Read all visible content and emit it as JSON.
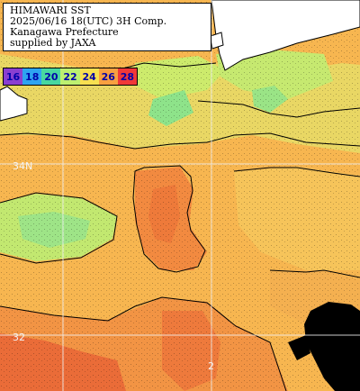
{
  "title": {
    "lines": [
      "HIMAWARI SST",
      "2025/06/16 18(UTC) 3H Comp.",
      "Kanagawa Prefecture",
      "supplied by JAXA"
    ]
  },
  "legend": {
    "items": [
      {
        "label": "16",
        "color": "#8a3fd0"
      },
      {
        "label": "18",
        "color": "#2ea4f0"
      },
      {
        "label": "20",
        "color": "#48d8a0"
      },
      {
        "label": "22",
        "color": "#bdf070"
      },
      {
        "label": "24",
        "color": "#f8e050"
      },
      {
        "label": "26",
        "color": "#f8a040"
      },
      {
        "label": "28",
        "color": "#f03838"
      }
    ]
  },
  "grid": {
    "lat_labels": [
      "34N",
      "32"
    ],
    "lon_labels": [
      "2"
    ]
  },
  "colors": {
    "land": "#ffffff",
    "cloud": "#000000",
    "sst_warm": "#f59a48",
    "sst_mid": "#f7c05a",
    "sst_cool": "#c8ec6a",
    "sst_cold": "#8fe08a"
  }
}
